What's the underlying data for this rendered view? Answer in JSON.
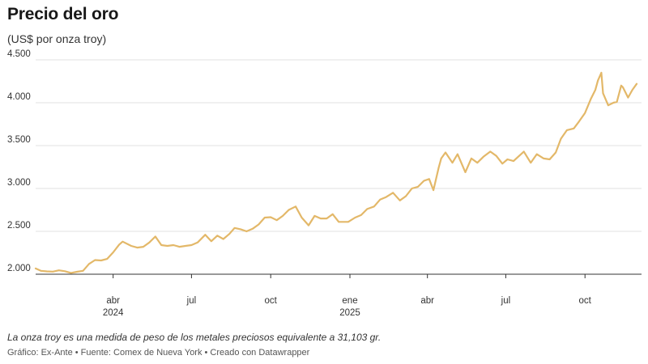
{
  "header": {
    "title": "Precio del oro",
    "subtitle": "(US$ por onza troy)"
  },
  "footer": {
    "note": "La onza troy es una medida de peso de los metales preciosos equivalente a 31,103 gr.",
    "credits": "Gráfico: Ex-Ante • Fuente: Comex de Nueva York • Creado con Datawrapper"
  },
  "chart_data": {
    "type": "line",
    "title": "Precio del oro",
    "subtitle": "(US$ por onza troy)",
    "xlabel": "",
    "ylabel": "",
    "ylim": [
      2000,
      4500
    ],
    "xlim": [
      "2024-01-02",
      "2025-11-30"
    ],
    "y_ticks": [
      {
        "value": 2000,
        "label": "2.000"
      },
      {
        "value": 2500,
        "label": "2.500"
      },
      {
        "value": 3000,
        "label": "3.000"
      },
      {
        "value": 3500,
        "label": "3.500"
      },
      {
        "value": 4000,
        "label": "4.000"
      },
      {
        "value": 4500,
        "label": "4.500"
      }
    ],
    "x_ticks": [
      {
        "date": "2024-04-01",
        "label": "abr",
        "sublabel": "2024"
      },
      {
        "date": "2024-07-01",
        "label": "jul",
        "sublabel": ""
      },
      {
        "date": "2024-10-01",
        "label": "oct",
        "sublabel": ""
      },
      {
        "date": "2025-01-01",
        "label": "ene",
        "sublabel": "2025"
      },
      {
        "date": "2025-04-01",
        "label": "abr",
        "sublabel": ""
      },
      {
        "date": "2025-07-01",
        "label": "jul",
        "sublabel": ""
      },
      {
        "date": "2025-10-01",
        "label": "oct",
        "sublabel": ""
      }
    ],
    "grid": "horizontal",
    "line_color": "#e3b869",
    "series": [
      {
        "points": [
          [
            "2024-01-02",
            2067
          ],
          [
            "2024-01-08",
            2040
          ],
          [
            "2024-01-15",
            2033
          ],
          [
            "2024-01-22",
            2030
          ],
          [
            "2024-01-29",
            2045
          ],
          [
            "2024-02-05",
            2035
          ],
          [
            "2024-02-12",
            2015
          ],
          [
            "2024-02-19",
            2028
          ],
          [
            "2024-02-26",
            2040
          ],
          [
            "2024-03-04",
            2120
          ],
          [
            "2024-03-11",
            2165
          ],
          [
            "2024-03-18",
            2160
          ],
          [
            "2024-03-25",
            2178
          ],
          [
            "2024-04-01",
            2255
          ],
          [
            "2024-04-08",
            2345
          ],
          [
            "2024-04-12",
            2380
          ],
          [
            "2024-04-22",
            2330
          ],
          [
            "2024-04-29",
            2310
          ],
          [
            "2024-05-06",
            2320
          ],
          [
            "2024-05-13",
            2370
          ],
          [
            "2024-05-20",
            2440
          ],
          [
            "2024-05-27",
            2340
          ],
          [
            "2024-06-03",
            2330
          ],
          [
            "2024-06-10",
            2340
          ],
          [
            "2024-06-17",
            2320
          ],
          [
            "2024-06-24",
            2330
          ],
          [
            "2024-07-01",
            2340
          ],
          [
            "2024-07-08",
            2370
          ],
          [
            "2024-07-17",
            2460
          ],
          [
            "2024-07-24",
            2385
          ],
          [
            "2024-07-31",
            2450
          ],
          [
            "2024-08-07",
            2410
          ],
          [
            "2024-08-14",
            2470
          ],
          [
            "2024-08-20",
            2540
          ],
          [
            "2024-08-27",
            2525
          ],
          [
            "2024-09-03",
            2500
          ],
          [
            "2024-09-10",
            2530
          ],
          [
            "2024-09-17",
            2580
          ],
          [
            "2024-09-24",
            2660
          ],
          [
            "2024-10-01",
            2665
          ],
          [
            "2024-10-08",
            2630
          ],
          [
            "2024-10-15",
            2680
          ],
          [
            "2024-10-22",
            2750
          ],
          [
            "2024-10-30",
            2790
          ],
          [
            "2024-11-06",
            2660
          ],
          [
            "2024-11-14",
            2570
          ],
          [
            "2024-11-21",
            2680
          ],
          [
            "2024-11-28",
            2650
          ],
          [
            "2024-12-05",
            2650
          ],
          [
            "2024-12-12",
            2700
          ],
          [
            "2024-12-19",
            2610
          ],
          [
            "2024-12-30",
            2610
          ],
          [
            "2025-01-07",
            2660
          ],
          [
            "2025-01-14",
            2690
          ],
          [
            "2025-01-21",
            2760
          ],
          [
            "2025-01-29",
            2790
          ],
          [
            "2025-02-05",
            2870
          ],
          [
            "2025-02-12",
            2900
          ],
          [
            "2025-02-20",
            2950
          ],
          [
            "2025-02-28",
            2860
          ],
          [
            "2025-03-07",
            2910
          ],
          [
            "2025-03-14",
            3000
          ],
          [
            "2025-03-21",
            3020
          ],
          [
            "2025-03-28",
            3090
          ],
          [
            "2025-04-03",
            3110
          ],
          [
            "2025-04-08",
            2980
          ],
          [
            "2025-04-14",
            3240
          ],
          [
            "2025-04-17",
            3350
          ],
          [
            "2025-04-22",
            3420
          ],
          [
            "2025-04-30",
            3300
          ],
          [
            "2025-05-06",
            3400
          ],
          [
            "2025-05-15",
            3190
          ],
          [
            "2025-05-22",
            3350
          ],
          [
            "2025-05-29",
            3300
          ],
          [
            "2025-06-05",
            3370
          ],
          [
            "2025-06-13",
            3430
          ],
          [
            "2025-06-20",
            3380
          ],
          [
            "2025-06-27",
            3290
          ],
          [
            "2025-07-03",
            3340
          ],
          [
            "2025-07-10",
            3320
          ],
          [
            "2025-07-22",
            3430
          ],
          [
            "2025-07-30",
            3300
          ],
          [
            "2025-08-06",
            3400
          ],
          [
            "2025-08-14",
            3350
          ],
          [
            "2025-08-21",
            3340
          ],
          [
            "2025-08-28",
            3420
          ],
          [
            "2025-09-03",
            3580
          ],
          [
            "2025-09-10",
            3680
          ],
          [
            "2025-09-18",
            3700
          ],
          [
            "2025-09-24",
            3780
          ],
          [
            "2025-10-01",
            3880
          ],
          [
            "2025-10-08",
            4050
          ],
          [
            "2025-10-13",
            4150
          ],
          [
            "2025-10-16",
            4260
          ],
          [
            "2025-10-20",
            4350
          ],
          [
            "2025-10-22",
            4110
          ],
          [
            "2025-10-28",
            3970
          ],
          [
            "2025-11-03",
            4000
          ],
          [
            "2025-11-07",
            4010
          ],
          [
            "2025-11-12",
            4200
          ],
          [
            "2025-11-14",
            4180
          ],
          [
            "2025-11-20",
            4060
          ],
          [
            "2025-11-25",
            4150
          ],
          [
            "2025-11-30",
            4220
          ]
        ]
      }
    ]
  }
}
